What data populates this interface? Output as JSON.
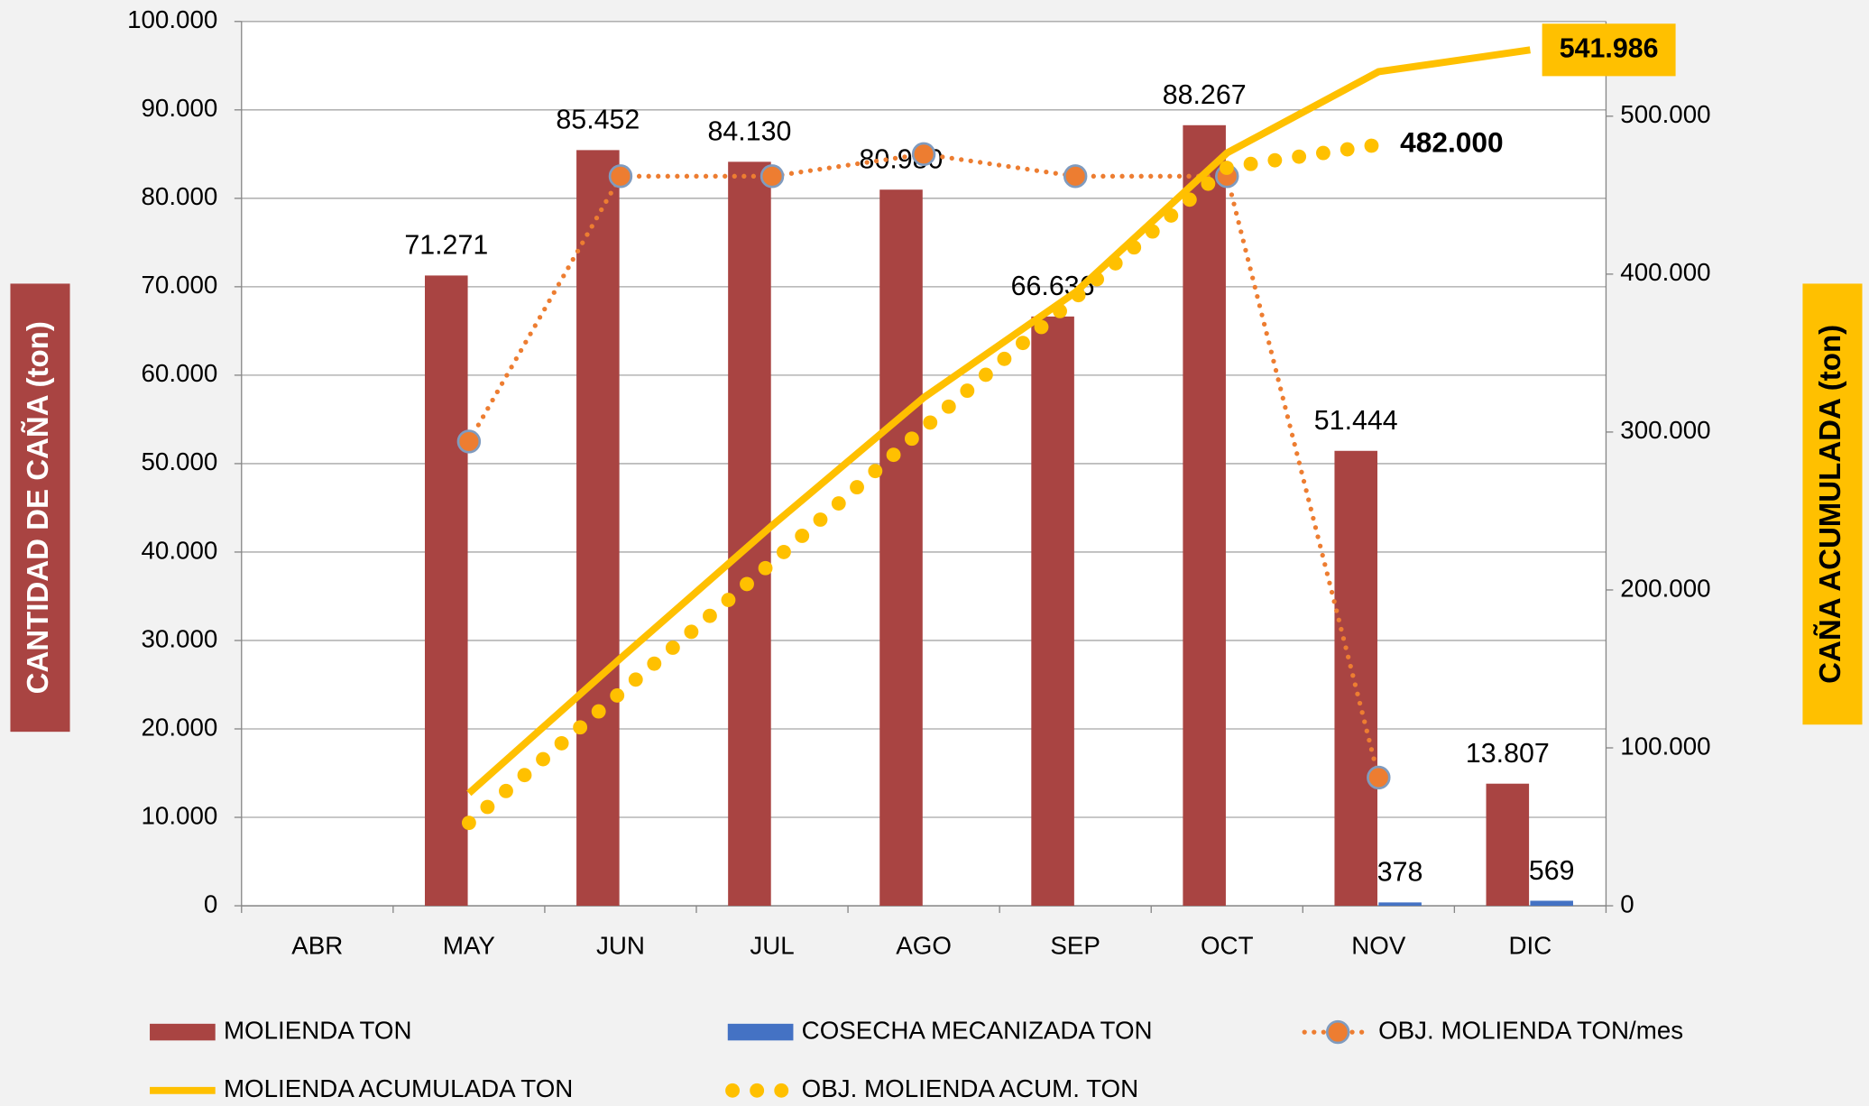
{
  "chart_data": {
    "type": "bar",
    "categories": [
      "ABR",
      "MAY",
      "JUN",
      "JUL",
      "AGO",
      "SEP",
      "OCT",
      "NOV",
      "DIC"
    ],
    "ylabel": "CANTIDAD DE CAÑA (ton)",
    "y2label": "CAÑA ACUMULADA (ton)",
    "ylim": [
      0,
      100000
    ],
    "yticks": [
      0,
      {
        "value": 10000,
        "label": "10.000"
      },
      {
        "value": 20000,
        "label": "20.000"
      },
      {
        "value": 30000,
        "label": "30.000"
      },
      {
        "value": 40000,
        "label": "40.000"
      },
      {
        "value": 50000,
        "label": "50.000"
      },
      {
        "value": 60000,
        "label": "60.000"
      },
      {
        "value": 70000,
        "label": "70.000"
      },
      {
        "value": 80000,
        "label": "80.000"
      },
      {
        "value": 90000,
        "label": "90.000"
      },
      {
        "value": 100000,
        "label": "100.000"
      }
    ],
    "y2lim": [
      0,
      560000
    ],
    "y2ticks": [
      0,
      {
        "value": 100000,
        "label": "100.000"
      },
      {
        "value": 200000,
        "label": "200.000"
      },
      {
        "value": 300000,
        "label": "300.000"
      },
      {
        "value": 400000,
        "label": "400.000"
      },
      {
        "value": 500000,
        "label": "500.000"
      }
    ],
    "grid": true,
    "series": [
      {
        "name": "MOLIENDA TON",
        "type": "bar",
        "color": "#a94442",
        "values": [
          null,
          71271,
          85452,
          84130,
          80980,
          66636,
          88267,
          51444,
          13807
        ],
        "value_labels": [
          null,
          "71.271",
          "85.452",
          "84.130",
          "80.980",
          "66.636",
          "88.267",
          "51.444",
          "13.807"
        ]
      },
      {
        "name": "COSECHA MECANIZADA TON",
        "type": "bar",
        "color": "#4472c4",
        "values": [
          null,
          null,
          null,
          null,
          null,
          null,
          null,
          378,
          569
        ],
        "value_labels": [
          null,
          null,
          null,
          null,
          null,
          null,
          null,
          "378",
          "569"
        ]
      },
      {
        "name": "OBJ. MOLIENDA TON/mes",
        "type": "line-marker",
        "color": "#ed7d31",
        "values": [
          null,
          52500,
          82500,
          82500,
          85000,
          82500,
          82500,
          14500,
          null
        ]
      },
      {
        "name": "MOLIENDA ACUMULADA TON",
        "type": "line",
        "axis": "y2",
        "color": "#ffc000",
        "values": [
          null,
          71271,
          156723,
          240853,
          321833,
          388469,
          476736,
          528180,
          541986
        ],
        "value_labels": [
          null,
          null,
          null,
          null,
          null,
          null,
          null,
          null,
          "541.986"
        ]
      },
      {
        "name": "OBJ. MOLIENDA ACUM. TON",
        "type": "dots",
        "axis": "y2",
        "color": "#ffc000",
        "values": [
          null,
          52500,
          135000,
          217500,
          302500,
          385000,
          467500,
          482000,
          null
        ],
        "value_labels": [
          null,
          null,
          null,
          null,
          null,
          null,
          null,
          "482.000",
          null
        ]
      }
    ]
  }
}
